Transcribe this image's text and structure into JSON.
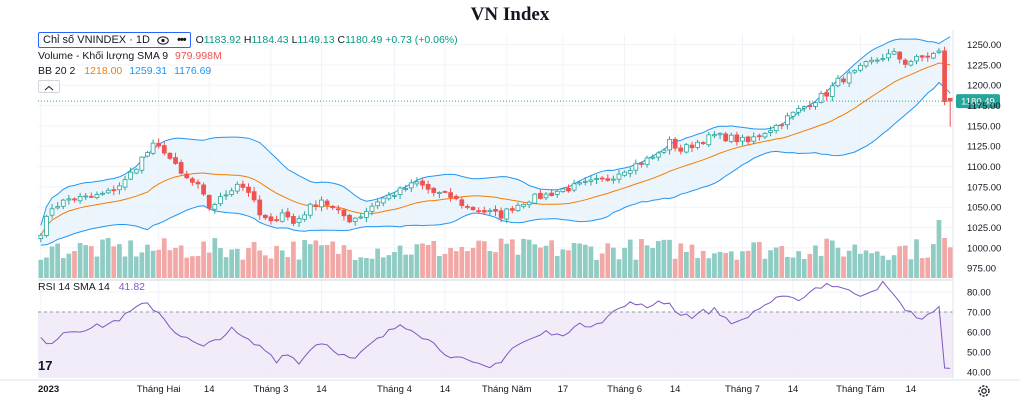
{
  "title": "VN Index",
  "header": {
    "symbol": "Chỉ số VNINDEX · 1D",
    "eye_icon": "eye-icon",
    "more_icon": "more-icon",
    "open": "1183.92",
    "high": "1184.43",
    "low": "1149.13",
    "close": "1180.49",
    "change": "+0.73 (+0.06%)",
    "ohlc_prefix": {
      "o": "O",
      "h": "H",
      "l": "L",
      "c": "C"
    }
  },
  "volume_legend": {
    "label": "Volume - Khối lượng SMA 9",
    "value": "979.998M"
  },
  "bb_legend": {
    "label": "BB 20 2",
    "basis": "1218.00",
    "upper": "1259.31",
    "lower": "1176.69"
  },
  "rsi_legend": {
    "label": "RSI 14 SMA 14",
    "value": "41.82"
  },
  "last_price_label": "1180.49",
  "logo_text": "17",
  "colors": {
    "up": "#26a69a",
    "down": "#ef5350",
    "bb_basis": "#f57c00",
    "bb_band": "#2196f3",
    "bb_fill": "#e6f2fb",
    "rsi_line": "#7e57c2",
    "rsi_fill": "#ede7f6",
    "vol_up": "#8fccc3",
    "vol_down": "#f2a8a6"
  },
  "chart_data": [
    {
      "type": "candlestick",
      "y_ticks": [
        975,
        1000,
        1025,
        1050,
        1075,
        1100,
        1125,
        1150,
        1175,
        1200,
        1225,
        1250
      ],
      "ylim": [
        963,
        1263
      ],
      "x_tick_labels": [
        {
          "label": "2023",
          "bold": true,
          "index": 0
        },
        {
          "label": "Tháng Hai",
          "index": 21
        },
        {
          "label": "14",
          "index": 30
        },
        {
          "label": "Tháng 3",
          "index": 41
        },
        {
          "label": "14",
          "index": 50
        },
        {
          "label": "Tháng 4",
          "index": 63
        },
        {
          "label": "14",
          "index": 72
        },
        {
          "label": "Tháng Năm",
          "index": 83
        },
        {
          "label": "17",
          "index": 93
        },
        {
          "label": "Tháng 6",
          "index": 104
        },
        {
          "label": "14",
          "index": 113
        },
        {
          "label": "Tháng 7",
          "index": 125
        },
        {
          "label": "14",
          "index": 134
        },
        {
          "label": "Tháng Tám",
          "index": 146
        },
        {
          "label": "14",
          "index": 155
        }
      ],
      "close_anchors": [
        [
          0,
          1020
        ],
        [
          2,
          1050
        ],
        [
          5,
          1060
        ],
        [
          9,
          1062
        ],
        [
          12,
          1068
        ],
        [
          15,
          1082
        ],
        [
          18,
          1110
        ],
        [
          20,
          1125
        ],
        [
          22,
          1120
        ],
        [
          25,
          1090
        ],
        [
          28,
          1075
        ],
        [
          30,
          1050
        ],
        [
          32,
          1060
        ],
        [
          35,
          1080
        ],
        [
          37,
          1070
        ],
        [
          39,
          1040
        ],
        [
          41,
          1030
        ],
        [
          43,
          1045
        ],
        [
          45,
          1030
        ],
        [
          48,
          1050
        ],
        [
          50,
          1060
        ],
        [
          52,
          1048
        ],
        [
          55,
          1035
        ],
        [
          57,
          1040
        ],
        [
          60,
          1058
        ],
        [
          64,
          1070
        ],
        [
          67,
          1080
        ],
        [
          70,
          1068
        ],
        [
          73,
          1063
        ],
        [
          76,
          1050
        ],
        [
          79,
          1045
        ],
        [
          82,
          1040
        ],
        [
          84,
          1050
        ],
        [
          87,
          1060
        ],
        [
          90,
          1065
        ],
        [
          92,
          1070
        ],
        [
          95,
          1075
        ],
        [
          98,
          1080
        ],
        [
          101,
          1085
        ],
        [
          104,
          1097
        ],
        [
          107,
          1105
        ],
        [
          110,
          1115
        ],
        [
          112,
          1130
        ],
        [
          114,
          1120
        ],
        [
          117,
          1130
        ],
        [
          120,
          1138
        ],
        [
          123,
          1135
        ],
        [
          126,
          1130
        ],
        [
          128,
          1140
        ],
        [
          131,
          1150
        ],
        [
          134,
          1165
        ],
        [
          137,
          1178
        ],
        [
          140,
          1190
        ],
        [
          142,
          1205
        ],
        [
          145,
          1215
        ],
        [
          147,
          1225
        ],
        [
          150,
          1235
        ],
        [
          152,
          1238
        ],
        [
          154,
          1228
        ],
        [
          156,
          1232
        ],
        [
          158,
          1236
        ],
        [
          160,
          1240
        ],
        [
          161,
          1180
        ],
        [
          162,
          1182
        ]
      ],
      "count": 163,
      "last": {
        "open": 1183.92,
        "high": 1184.43,
        "low": 1149.13,
        "close": 1180.49
      }
    },
    {
      "type": "line",
      "name": "RSI 14",
      "y_ticks": [
        40,
        50,
        60,
        70,
        80
      ],
      "ylim": [
        37,
        86
      ],
      "overbought": 70,
      "anchors": [
        [
          0,
          56
        ],
        [
          2,
          55
        ],
        [
          4,
          60
        ],
        [
          6,
          61
        ],
        [
          9,
          62
        ],
        [
          12,
          64
        ],
        [
          15,
          68
        ],
        [
          17,
          72
        ],
        [
          19,
          74
        ],
        [
          21,
          70
        ],
        [
          23,
          63
        ],
        [
          25,
          58
        ],
        [
          27,
          55
        ],
        [
          29,
          52
        ],
        [
          31,
          56
        ],
        [
          34,
          61
        ],
        [
          36,
          57
        ],
        [
          38,
          54
        ],
        [
          40,
          51
        ],
        [
          42,
          46
        ],
        [
          44,
          50
        ],
        [
          46,
          44
        ],
        [
          48,
          52
        ],
        [
          50,
          55
        ],
        [
          52,
          52
        ],
        [
          54,
          48
        ],
        [
          56,
          46
        ],
        [
          58,
          52
        ],
        [
          60,
          56
        ],
        [
          62,
          60
        ],
        [
          64,
          64
        ],
        [
          66,
          62
        ],
        [
          68,
          58
        ],
        [
          70,
          54
        ],
        [
          72,
          50
        ],
        [
          74,
          47
        ],
        [
          76,
          45
        ],
        [
          78,
          43
        ],
        [
          80,
          42
        ],
        [
          82,
          46
        ],
        [
          84,
          52
        ],
        [
          86,
          55
        ],
        [
          88,
          57
        ],
        [
          90,
          60
        ],
        [
          92,
          58
        ],
        [
          94,
          61
        ],
        [
          96,
          63
        ],
        [
          98,
          64
        ],
        [
          100,
          66
        ],
        [
          102,
          70
        ],
        [
          104,
          73
        ],
        [
          106,
          75
        ],
        [
          108,
          71
        ],
        [
          110,
          76
        ],
        [
          112,
          74
        ],
        [
          114,
          69
        ],
        [
          116,
          68
        ],
        [
          118,
          70
        ],
        [
          120,
          71
        ],
        [
          122,
          67
        ],
        [
          124,
          64
        ],
        [
          126,
          68
        ],
        [
          128,
          72
        ],
        [
          130,
          75
        ],
        [
          132,
          77
        ],
        [
          134,
          76
        ],
        [
          136,
          78
        ],
        [
          138,
          82
        ],
        [
          140,
          84
        ],
        [
          142,
          83
        ],
        [
          144,
          80
        ],
        [
          146,
          79
        ],
        [
          148,
          81
        ],
        [
          150,
          84
        ],
        [
          152,
          78
        ],
        [
          153,
          74
        ],
        [
          155,
          70
        ],
        [
          156,
          66
        ],
        [
          158,
          69
        ],
        [
          160,
          72
        ],
        [
          161,
          42
        ],
        [
          162,
          41.82
        ]
      ]
    },
    {
      "type": "bar",
      "name": "Volume",
      "relative": true
    }
  ]
}
